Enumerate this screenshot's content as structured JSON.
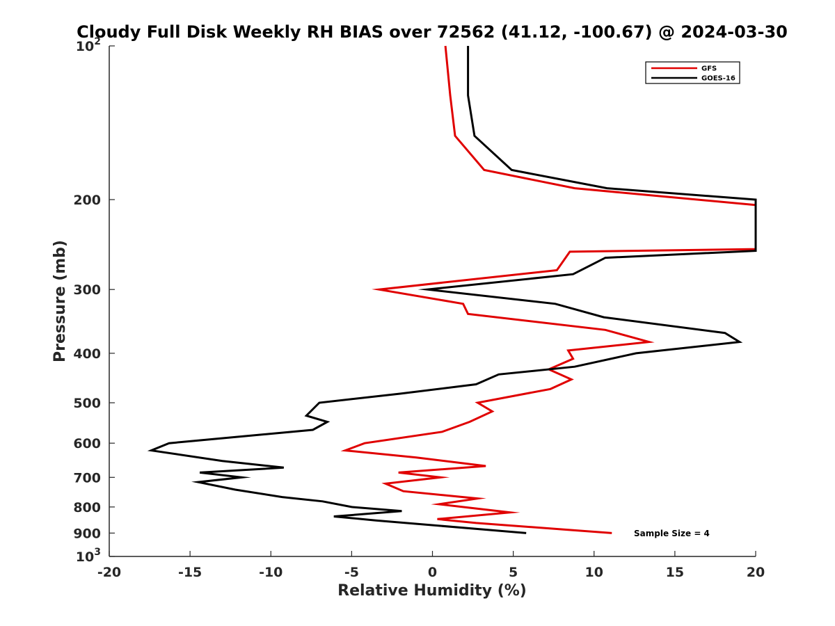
{
  "chart_data": {
    "type": "line",
    "title": "Cloudy Full Disk Weekly RH BIAS over 72562 (41.12, -100.67) @ 2024-03-30",
    "xlabel": "Relative Humidity (%)",
    "ylabel": "Pressure (mb)",
    "xlim": [
      -20,
      20
    ],
    "ylim": [
      100,
      1000
    ],
    "y_scale": "log",
    "y_reversed": true,
    "x_ticks": [
      "-20",
      "-15",
      "-10",
      "-5",
      "0",
      "5",
      "10",
      "15",
      "20"
    ],
    "x_tick_values": [
      -20,
      -15,
      -10,
      -5,
      0,
      5,
      10,
      15,
      20
    ],
    "y_ticks": [
      {
        "value": 100,
        "label": "10",
        "sup": "2"
      },
      {
        "value": 200,
        "label": "200",
        "sup": ""
      },
      {
        "value": 300,
        "label": "300",
        "sup": ""
      },
      {
        "value": 400,
        "label": "400",
        "sup": ""
      },
      {
        "value": 500,
        "label": "500",
        "sup": ""
      },
      {
        "value": 600,
        "label": "600",
        "sup": ""
      },
      {
        "value": 700,
        "label": "700",
        "sup": ""
      },
      {
        "value": 800,
        "label": "800",
        "sup": ""
      },
      {
        "value": 900,
        "label": "900",
        "sup": ""
      },
      {
        "value": 1000,
        "label": "10",
        "sup": "3"
      }
    ],
    "grid": false,
    "legend_position": "top-right",
    "annotation": "Sample Size = 4",
    "series": [
      {
        "name": "GFS",
        "color": "#e00000",
        "points": [
          [
            0.8,
            100
          ],
          [
            1.1,
            125
          ],
          [
            1.4,
            150
          ],
          [
            3.2,
            175
          ],
          [
            8.8,
            190
          ],
          [
            20,
            205
          ],
          [
            20,
            250
          ],
          [
            8.5,
            253
          ],
          [
            7.7,
            275
          ],
          [
            -3.3,
            300
          ],
          [
            1.9,
            320
          ],
          [
            2.2,
            335
          ],
          [
            10.7,
            360
          ],
          [
            13.4,
            380
          ],
          [
            8.4,
            395
          ],
          [
            8.7,
            410
          ],
          [
            7.2,
            430
          ],
          [
            8.6,
            450
          ],
          [
            7.3,
            470
          ],
          [
            2.8,
            500
          ],
          [
            3.7,
            520
          ],
          [
            2.3,
            545
          ],
          [
            0.6,
            570
          ],
          [
            -4.2,
            600
          ],
          [
            -5.4,
            620
          ],
          [
            -1.0,
            640
          ],
          [
            3.3,
            665
          ],
          [
            -2.1,
            685
          ],
          [
            0.5,
            700
          ],
          [
            -2.9,
            720
          ],
          [
            -1.8,
            745
          ],
          [
            2.8,
            770
          ],
          [
            0.4,
            790
          ],
          [
            4.8,
            820
          ],
          [
            0.3,
            845
          ],
          [
            2.7,
            860
          ],
          [
            11.1,
            900
          ]
        ]
      },
      {
        "name": "GOES-16",
        "color": "#000000",
        "points": [
          [
            2.2,
            100
          ],
          [
            2.2,
            125
          ],
          [
            2.6,
            150
          ],
          [
            4.9,
            175
          ],
          [
            10.8,
            190
          ],
          [
            20,
            200
          ],
          [
            20,
            252
          ],
          [
            10.7,
            260
          ],
          [
            8.7,
            280
          ],
          [
            -0.3,
            300
          ],
          [
            7.6,
            320
          ],
          [
            10.6,
            340
          ],
          [
            18.1,
            365
          ],
          [
            19.0,
            380
          ],
          [
            12.6,
            400
          ],
          [
            8.8,
            425
          ],
          [
            4.1,
            440
          ],
          [
            2.7,
            460
          ],
          [
            -2.0,
            480
          ],
          [
            -7.0,
            500
          ],
          [
            -7.8,
            530
          ],
          [
            -6.5,
            545
          ],
          [
            -7.4,
            565
          ],
          [
            -16.3,
            600
          ],
          [
            -17.4,
            620
          ],
          [
            -13.0,
            650
          ],
          [
            -9.2,
            670
          ],
          [
            -14.4,
            685
          ],
          [
            -11.8,
            700
          ],
          [
            -14.5,
            715
          ],
          [
            -12.2,
            740
          ],
          [
            -9.3,
            765
          ],
          [
            -6.8,
            780
          ],
          [
            -5.0,
            800
          ],
          [
            -1.9,
            815
          ],
          [
            -6.1,
            835
          ],
          [
            -3.5,
            850
          ],
          [
            5.8,
            900
          ]
        ]
      }
    ]
  }
}
